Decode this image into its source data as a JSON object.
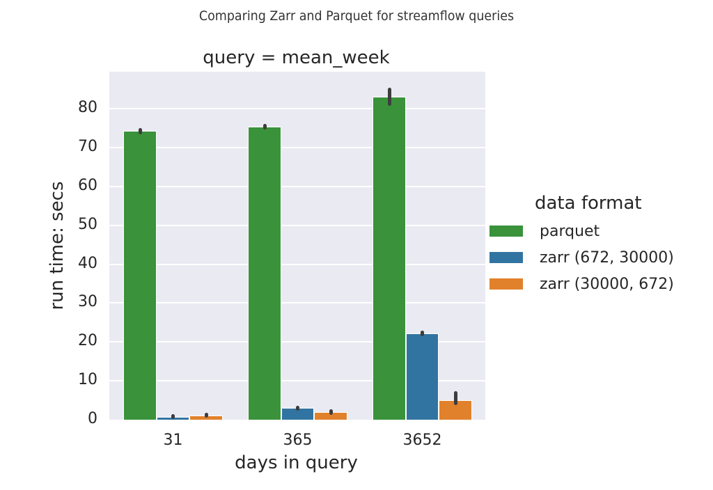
{
  "figure": {
    "suptitle": "Comparing Zarr and Parquet for streamflow queries",
    "title": "query = mean_week",
    "xlabel": "days in query",
    "ylabel": "run time: secs",
    "legend_title": "data format"
  },
  "chart_data": {
    "type": "bar",
    "title": "query = mean_week",
    "suptitle": "Comparing Zarr and Parquet for streamflow queries",
    "xlabel": "days in query",
    "ylabel": "run time: secs",
    "categories": [
      "31",
      "365",
      "3652"
    ],
    "series": [
      {
        "name": "parquet",
        "color": "#3a923a",
        "values": [
          74.2,
          75.3,
          83.0
        ],
        "err_low": [
          73.8,
          75.0,
          81.0
        ],
        "err_high": [
          74.6,
          75.8,
          85.0
        ]
      },
      {
        "name": "zarr (672, 30000)",
        "color": "#3274a1",
        "values": [
          0.8,
          3.0,
          22.2
        ],
        "err_low": [
          0.6,
          2.7,
          21.9
        ],
        "err_high": [
          1.1,
          3.3,
          22.6
        ]
      },
      {
        "name": "zarr (30000, 672)",
        "color": "#e1812c",
        "values": [
          1.1,
          2.0,
          5.0
        ],
        "err_low": [
          0.9,
          1.6,
          4.2
        ],
        "err_high": [
          1.5,
          2.4,
          7.0
        ]
      }
    ],
    "yticks": [
      0,
      10,
      20,
      30,
      40,
      50,
      60,
      70,
      80
    ],
    "ylim": [
      0,
      89.5
    ],
    "grid": true,
    "error_bars": true,
    "legend_position": "right, outside plot"
  }
}
